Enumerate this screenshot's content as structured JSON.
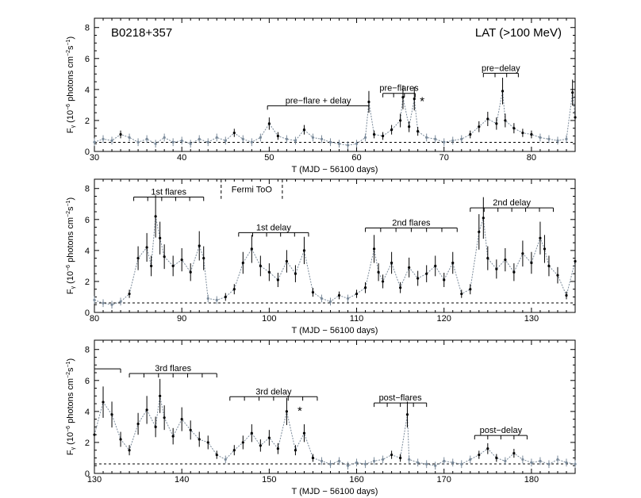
{
  "figure": {
    "source_label": "B0218+357",
    "instrument_label": "LAT (>100 MeV)",
    "y_axis_label_main": "F",
    "y_axis_label_sub": "γ",
    "y_axis_label_rest": " (10",
    "y_axis_label_exp": "−6",
    "y_axis_label_units": " photons cm",
    "y_axis_label_exp2": "−2",
    "y_axis_label_s": "s",
    "y_axis_label_exp3": "−1",
    "y_axis_label_close": ")",
    "x_axis_label": "T (MJD − 56100 days)"
  },
  "colors": {
    "flux": "#000000",
    "upper_limit": "#7a8a9a",
    "baseline": "#000000"
  },
  "chart_data": [
    {
      "type": "line",
      "panel": "top",
      "xlim": [
        30,
        85
      ],
      "ylim": [
        0,
        8.6
      ],
      "xticks": [
        30,
        40,
        50,
        60,
        70,
        80
      ],
      "yticks": [
        0,
        2,
        4,
        6,
        8
      ],
      "baseline": 0.35,
      "series": [
        {
          "name": "LAT flux",
          "x": [
            30,
            31,
            32,
            33,
            34,
            35,
            36,
            37,
            38,
            39,
            40,
            41,
            42,
            43,
            44,
            45,
            46,
            47,
            48,
            49,
            50,
            51,
            52,
            53,
            54,
            55,
            56,
            57,
            58,
            59,
            60,
            61,
            61.4,
            62,
            63,
            64,
            65,
            65.3,
            66,
            66.6,
            67,
            68,
            69,
            70,
            71,
            72,
            73,
            74,
            75,
            76,
            76.7,
            77,
            78,
            79,
            80,
            81,
            82,
            83,
            84,
            84.7,
            85
          ],
          "y": [
            0.6,
            0.8,
            0.7,
            1.1,
            0.9,
            0.6,
            0.8,
            0.5,
            0.9,
            0.6,
            0.7,
            0.5,
            0.8,
            0.6,
            0.9,
            0.7,
            1.2,
            0.8,
            0.6,
            0.9,
            1.8,
            1.0,
            0.8,
            0.7,
            1.4,
            0.9,
            0.8,
            0.6,
            0.5,
            0.4,
            0.5,
            0.9,
            3.2,
            1.1,
            1.0,
            1.4,
            2.0,
            3.5,
            1.6,
            3.4,
            1.3,
            0.9,
            0.8,
            0.6,
            0.7,
            0.8,
            1.1,
            1.6,
            2.1,
            1.8,
            3.9,
            2.0,
            1.5,
            1.2,
            1.1,
            0.9,
            0.8,
            0.7,
            0.8,
            3.8,
            2.2
          ]
        }
      ],
      "annotations": [
        {
          "label": "pre−flare + delay",
          "start": 49.8,
          "end": 61.4,
          "level": 2.95,
          "ticks": 1
        },
        {
          "label": "pre−flares",
          "start": 63.0,
          "end": 66.7,
          "level": 3.75,
          "ticks": 3
        },
        {
          "label": "pre−delay",
          "start": 74.5,
          "end": 78.5,
          "level": 5.05,
          "ticks": 3
        },
        {
          "label": "*",
          "x": 67.5,
          "y": 3.0
        }
      ]
    },
    {
      "type": "line",
      "panel": "middle",
      "xlim": [
        80,
        135
      ],
      "ylim": [
        0,
        8.6
      ],
      "xticks": [
        80,
        90,
        100,
        110,
        120,
        130
      ],
      "yticks": [
        0,
        2,
        4,
        6,
        8
      ],
      "baseline": 0.35,
      "series": [
        {
          "name": "LAT flux",
          "x": [
            80,
            81,
            82,
            83,
            84,
            85,
            86,
            86.5,
            87,
            87.5,
            88,
            89,
            90,
            91,
            92,
            92.5,
            93,
            94,
            95,
            96,
            97,
            98,
            99,
            100,
            101,
            102,
            103,
            104,
            105,
            106,
            107,
            108,
            109,
            110,
            111,
            112,
            112.5,
            113,
            114,
            115,
            116,
            117,
            118,
            119,
            120,
            121,
            122,
            123,
            124,
            124.5,
            125,
            126,
            127,
            128,
            129,
            130,
            131,
            131.5,
            132,
            133,
            134,
            135
          ],
          "y": [
            0.8,
            0.6,
            0.5,
            0.7,
            1.2,
            3.5,
            4.2,
            3.0,
            6.2,
            4.8,
            3.6,
            3.0,
            3.4,
            2.6,
            4.3,
            3.5,
            0.9,
            0.8,
            1.0,
            1.5,
            3.2,
            4.1,
            3.0,
            2.6,
            2.1,
            3.3,
            2.5,
            4.0,
            1.3,
            0.9,
            0.7,
            1.1,
            0.9,
            1.2,
            1.6,
            4.1,
            2.6,
            2.0,
            3.2,
            1.6,
            2.9,
            2.2,
            2.5,
            3.0,
            2.1,
            3.2,
            1.2,
            1.5,
            5.2,
            6.1,
            3.5,
            2.8,
            3.4,
            2.6,
            3.8,
            3.2,
            4.8,
            4.1,
            3.0,
            2.4,
            1.1,
            3.3
          ]
        }
      ],
      "annotations": [
        {
          "label": "1st flares",
          "start": 84.5,
          "end": 92.5,
          "level": 7.45,
          "ticks": 5
        },
        {
          "label": "Fermi ToO",
          "start": 94.5,
          "end": 101.5,
          "level": 8.05,
          "dashed": true
        },
        {
          "label": "1st delay",
          "start": 96.5,
          "end": 104.5,
          "level": 5.15,
          "ticks": 5
        },
        {
          "label": "2nd flares",
          "start": 111.0,
          "end": 121.5,
          "level": 5.45,
          "ticks": 6
        },
        {
          "label": "2nd delay",
          "start": 123.0,
          "end": 132.5,
          "level": 6.75,
          "ticks": 6
        }
      ]
    },
    {
      "type": "line",
      "panel": "bottom",
      "xlim": [
        130,
        185
      ],
      "ylim": [
        0,
        8.6
      ],
      "xticks": [
        130,
        140,
        150,
        160,
        170,
        180
      ],
      "yticks": [
        0,
        2,
        4,
        6,
        8
      ],
      "baseline": 0.35,
      "series": [
        {
          "name": "LAT flux",
          "x": [
            130,
            131,
            132,
            133,
            134,
            135,
            136,
            137,
            137.5,
            138,
            139,
            140,
            141,
            142,
            143,
            144,
            145,
            146,
            147,
            148,
            149,
            150,
            151,
            152,
            153,
            154,
            155,
            156,
            157,
            158,
            159,
            160,
            161,
            162,
            163,
            164,
            165,
            165.8,
            166,
            167,
            168,
            169,
            170,
            171,
            172,
            173,
            174,
            175,
            176,
            177,
            178,
            179,
            180,
            181,
            182,
            183,
            184,
            185
          ],
          "y": [
            2.5,
            4.6,
            3.8,
            2.2,
            1.5,
            3.2,
            4.1,
            3.0,
            5.0,
            3.6,
            2.4,
            3.5,
            2.8,
            2.2,
            2.0,
            1.2,
            0.9,
            1.5,
            2.0,
            2.6,
            1.8,
            2.3,
            1.6,
            4.0,
            1.5,
            2.6,
            1.0,
            0.8,
            0.6,
            0.8,
            0.5,
            0.7,
            0.6,
            0.8,
            0.9,
            1.2,
            1.0,
            3.8,
            0.9,
            0.7,
            0.6,
            0.5,
            0.8,
            0.7,
            0.6,
            0.9,
            1.2,
            1.6,
            1.0,
            0.8,
            1.3,
            0.9,
            0.7,
            0.8,
            0.6,
            0.9,
            0.7,
            0.6
          ]
        }
      ],
      "annotations": [
        {
          "label": "",
          "start": 130.0,
          "end": 133.0,
          "level": 6.75,
          "ticks": 1
        },
        {
          "label": "3rd flares",
          "start": 134.0,
          "end": 144.0,
          "level": 6.45,
          "ticks": 6
        },
        {
          "label": "3rd delay",
          "start": 145.5,
          "end": 155.5,
          "level": 4.95,
          "ticks": 6
        },
        {
          "label": "post−flares",
          "start": 162.0,
          "end": 168.0,
          "level": 4.55,
          "ticks": 4
        },
        {
          "label": "post−delay",
          "start": 173.5,
          "end": 179.5,
          "level": 2.45,
          "ticks": 4
        },
        {
          "label": "*",
          "x": 153.5,
          "y": 3.8
        }
      ]
    }
  ]
}
